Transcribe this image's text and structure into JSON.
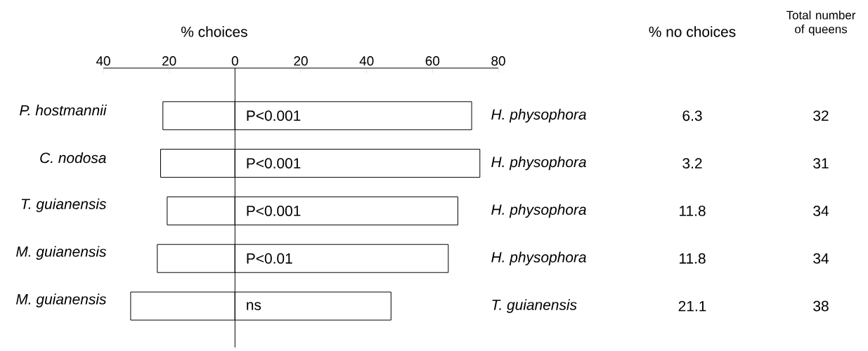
{
  "chart_data": {
    "type": "bar",
    "orientation": "horizontal",
    "stacked": true,
    "xlabel": "% choices",
    "categories": [
      "P. hostmannii",
      "C. nodosa",
      "T. guianensis",
      "M. guianensis",
      "M. guianensis"
    ],
    "series": [
      {
        "color": "#ffffff",
        "values": [
          -21.9,
          -22.6,
          -20.6,
          -23.6,
          -31.7
        ]
      },
      {
        "color": "#ffffff",
        "values": [
          71.9,
          74.4,
          67.7,
          64.8,
          47.4
        ]
      }
    ],
    "xlim": [
      -40,
      80
    ],
    "xticks": [
      {
        "value": -40,
        "label": "40"
      },
      {
        "value": -20,
        "label": "20"
      },
      0,
      20,
      40,
      60,
      80
    ],
    "ref_lines": [
      {
        "axis": "x",
        "value": 0
      }
    ],
    "annotations": [
      "% no choices",
      "Total number of queens",
      "P<0.001",
      "H. physophora",
      "6.3",
      "32",
      "P<0.001",
      "H. physophora",
      "3.2",
      "31",
      "P<0.001",
      "H. physophora",
      "11.8",
      "34",
      "P<0.01",
      "H. physophora",
      "11.8",
      "34",
      "ns",
      "T. guianensis",
      "21.1",
      "38"
    ]
  }
}
